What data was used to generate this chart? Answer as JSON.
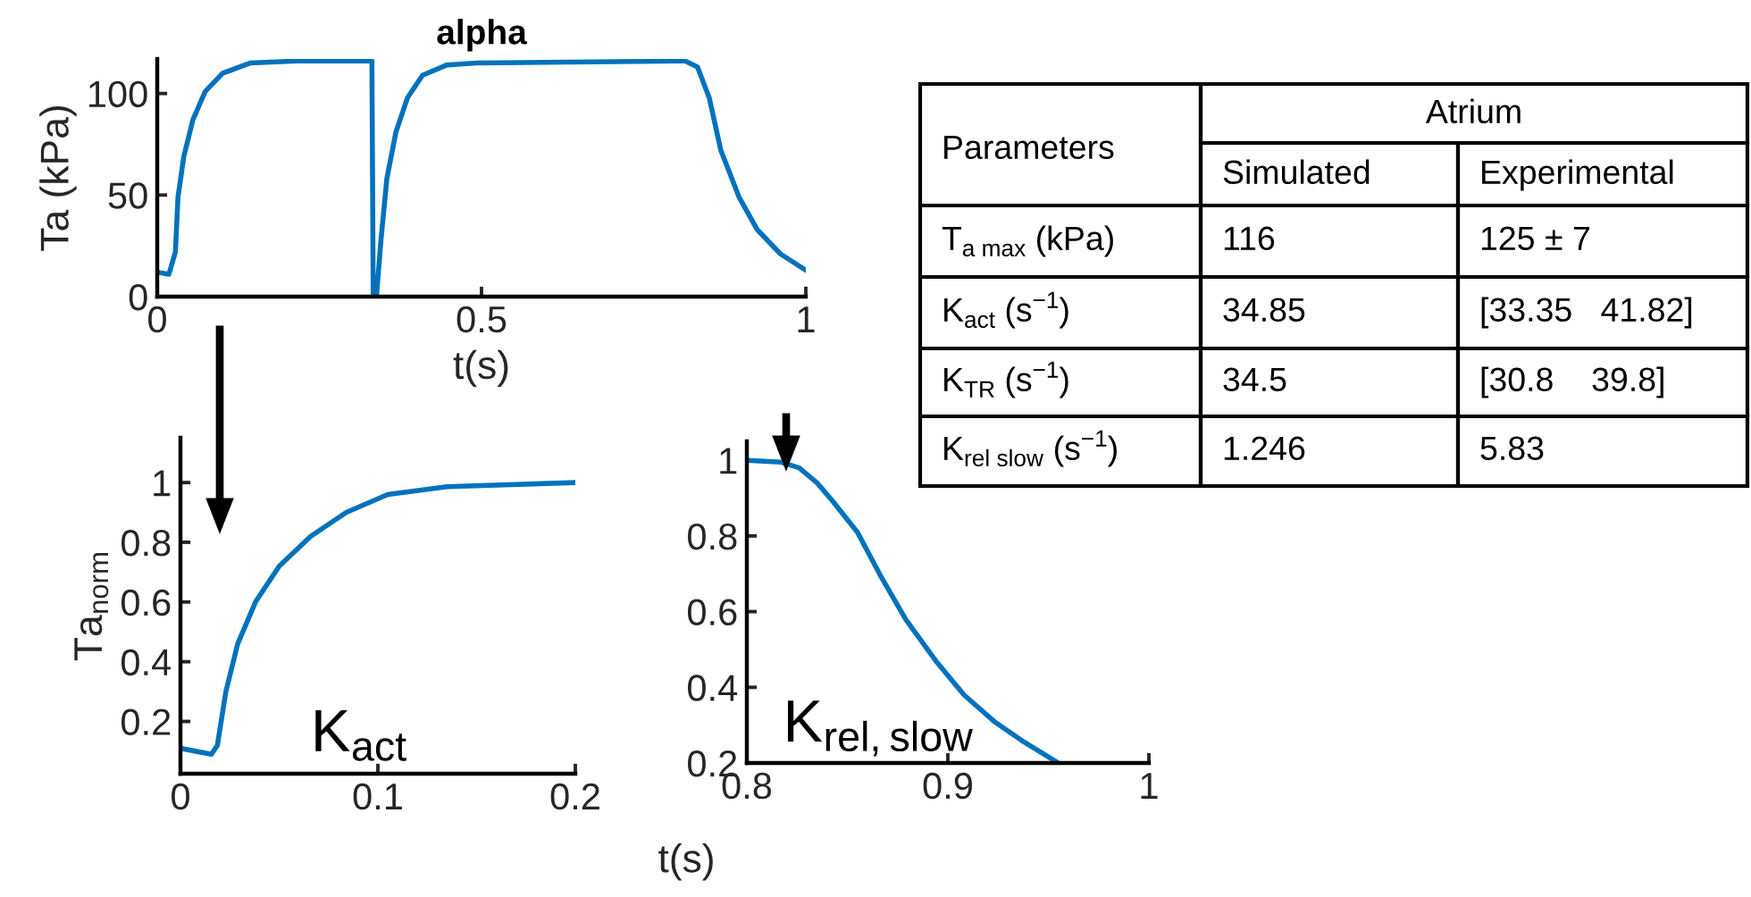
{
  "chart_data": [
    {
      "type": "line",
      "title": "alpha",
      "xlabel": "t(s)",
      "ylabel": "Ta (kPa)",
      "xlim": [
        0,
        1
      ],
      "ylim": [
        0,
        117
      ],
      "xticks": [
        0,
        0.5,
        1
      ],
      "yticks": [
        0,
        50,
        100
      ],
      "grid": false,
      "legend": false,
      "series": [
        {
          "color": "#0072bd",
          "x": [
            0,
            0.018,
            0.028,
            0.032,
            0.041,
            0.055,
            0.074,
            0.101,
            0.143,
            0.216,
            0.331,
            0.333,
            0.338,
            0.345,
            0.354,
            0.368,
            0.386,
            0.409,
            0.446,
            0.492,
            0.814,
            0.833,
            0.851,
            0.869,
            0.897,
            0.925,
            0.961,
            1.0
          ],
          "values": [
            12,
            11,
            22,
            49,
            69,
            87,
            101,
            110,
            115,
            116,
            116,
            0,
            0,
            28,
            58,
            81,
            98,
            109,
            114,
            115,
            116,
            113,
            98,
            72,
            49,
            33,
            21,
            13
          ]
        }
      ]
    },
    {
      "type": "line",
      "ylabel": "Ta$_{norm}$",
      "xlim": [
        0,
        0.2
      ],
      "ylim": [
        0.025,
        1.15
      ],
      "xticks": [
        0,
        0.1,
        0.2
      ],
      "yticks": [
        0.2,
        0.4,
        0.6,
        0.8,
        1
      ],
      "grid": false,
      "legend": false,
      "annotations": [
        "K$_{act}$"
      ],
      "series": [
        {
          "color": "#0072bd",
          "x": [
            0,
            0.0157,
            0.0187,
            0.023,
            0.029,
            0.038,
            0.05,
            0.066,
            0.084,
            0.105,
            0.135,
            0.2
          ],
          "values": [
            0.11,
            0.09,
            0.12,
            0.3,
            0.46,
            0.6,
            0.72,
            0.82,
            0.9,
            0.96,
            0.986,
            1.0
          ]
        }
      ]
    },
    {
      "type": "line",
      "xlabel": "t(s)",
      "xlim": [
        0.8,
        1
      ],
      "ylim": [
        0.2,
        1.05
      ],
      "xticks": [
        0.8,
        0.9,
        1
      ],
      "yticks": [
        0.2,
        0.4,
        0.6,
        0.8,
        1
      ],
      "grid": false,
      "legend": false,
      "annotations": [
        "K$_{rel,slow}$"
      ],
      "series": [
        {
          "color": "#0072bd",
          "x": [
            0.8,
            0.817,
            0.826,
            0.835,
            0.843,
            0.855,
            0.867,
            0.879,
            0.894,
            0.908,
            0.923,
            0.938,
            0.955
          ],
          "values": [
            1.0,
            0.995,
            0.98,
            0.94,
            0.89,
            0.81,
            0.69,
            0.58,
            0.47,
            0.38,
            0.31,
            0.255,
            0.2
          ]
        }
      ]
    },
    {
      "type": "other",
      "annotations": [
        "Parameters",
        "Atrium",
        "Simulated",
        "Experimental",
        "T$_{a max}$ (kPa)",
        "116",
        "125 ± 7",
        "K$_{act}$ (s$^{−1}$)",
        "34.85",
        "[33.35   41.82]",
        "K$_{TR}$ (s$^{−1}$)",
        "34.5",
        "[30.8    39.8]",
        "K$_{rel slow}$ (s$^{−1}$)",
        "1.246",
        "5.83"
      ]
    }
  ]
}
